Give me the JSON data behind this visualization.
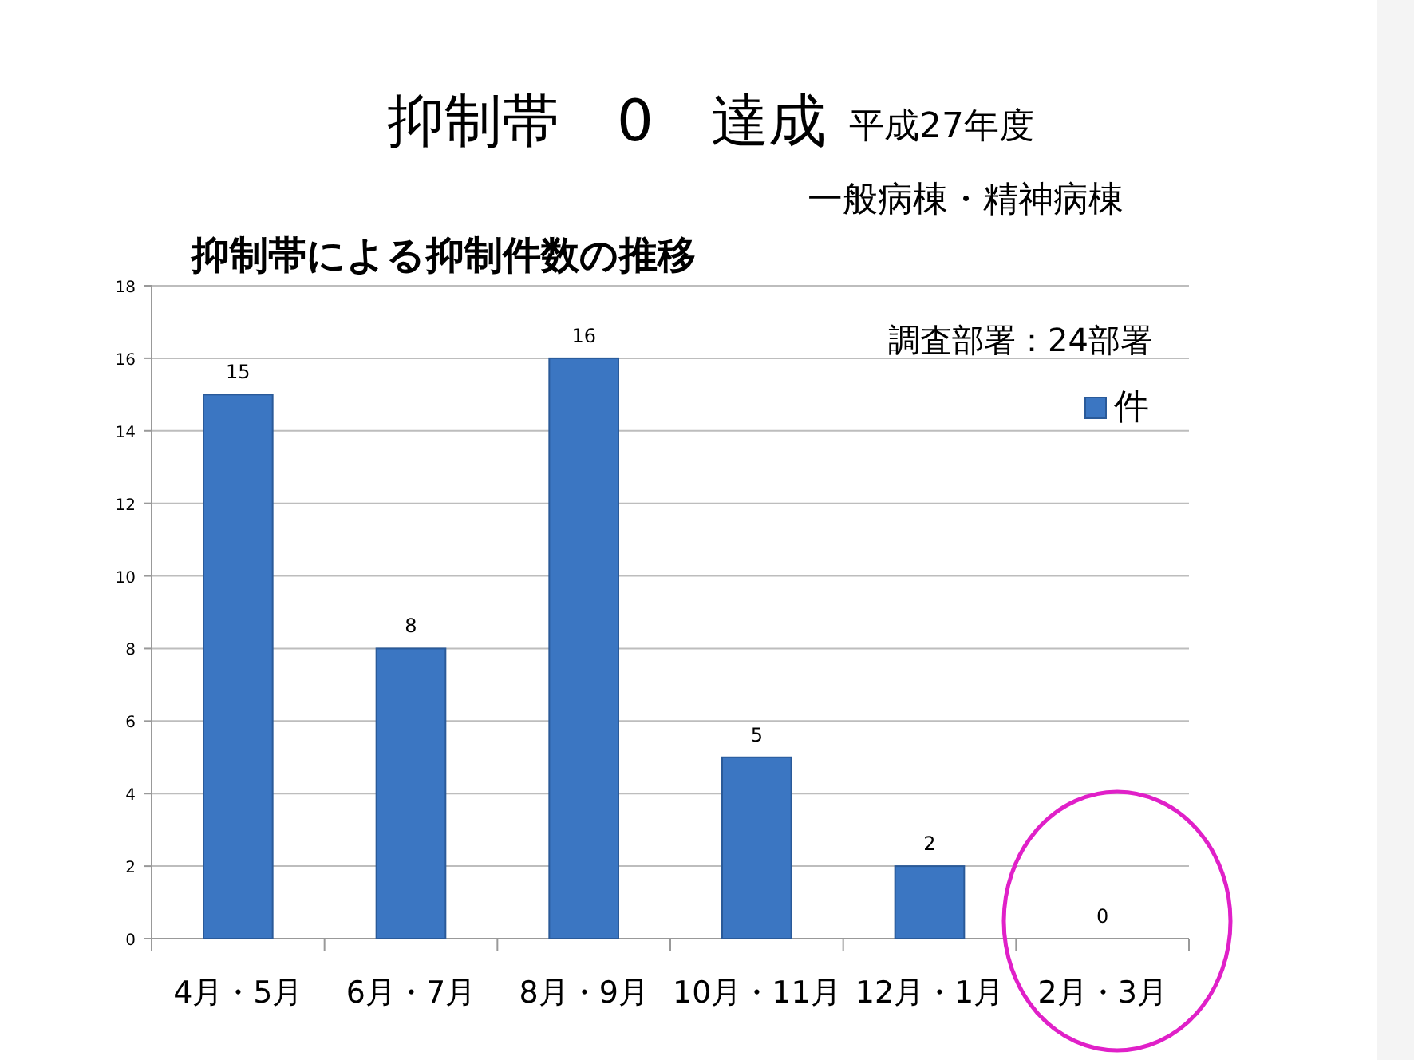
{
  "chart_data": {
    "type": "bar",
    "title": "抑制帯　0　達成",
    "subtitle": "平成27年度",
    "annotations": [
      "一般病棟・精神病棟",
      "抑制帯による抑制件数の推移",
      "調査部署：24部署"
    ],
    "categories": [
      "4月・5月",
      "6月・7月",
      "8月・9月",
      "10月・11月",
      "12月・1月",
      "2月・3月"
    ],
    "series": [
      {
        "name": "件",
        "color": "#3b76c2",
        "values": [
          15,
          8,
          16,
          5,
          2,
          0
        ]
      }
    ],
    "ylim": [
      0,
      18
    ],
    "yticks": [
      0,
      2,
      4,
      6,
      8,
      10,
      12,
      14,
      16,
      18
    ],
    "grid": "y",
    "legend": "top right",
    "data_labels": true
  }
}
